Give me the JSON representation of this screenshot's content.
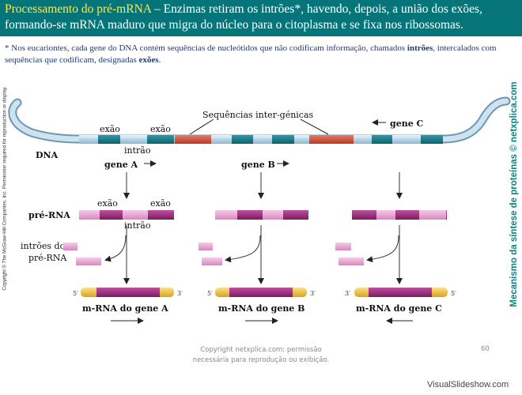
{
  "header": {
    "title_highlight": "Processamento do pré-mRNA",
    "title_rest": " – Enzimas retiram os intrões*, havendo, depois, a união dos exões, formando-se mRNA maduro que migra do núcleo para o citoplasma e se fixa nos ribossomas."
  },
  "note": {
    "part1": "* Nos eucariontes, cada gene do DNA contém sequências de nucleótidos que não codificam informação, chamados ",
    "intron_word": "intrões",
    "part2": ", intercalados com sequências que codificam, designadas ",
    "exon_word": "exões",
    "part3": "."
  },
  "side": {
    "copyright": "Copyright © The McGraw-Hill Companies, Inc. Permission required for reproduction or display.",
    "watermark": "Mecanismo da síntese de proteínas © netxplica.com"
  },
  "diagram": {
    "dna_label": "DNA",
    "intergenic_label": "Sequências inter-génicas",
    "exon_label": "exão",
    "intron_label": "intrão",
    "gene_a": "gene A",
    "gene_b": "gene B",
    "gene_c": "gene C",
    "pre_rna_label": "pré-RNA",
    "removed_introns_label_1": "intrões do",
    "removed_introns_label_2": "pré-RNA",
    "end5": "5′",
    "end3": "3′",
    "mrna_a": "m-RNA do gene A",
    "mrna_b": "m-RNA do gene B",
    "mrna_c": "m-RNA do gene C"
  },
  "colors": {
    "header_bg": "#06757a",
    "dna_backbone": "#c2dcea",
    "exon_dna": "#1b7f8c",
    "intergenic": "#d95a45",
    "pre_rna_exon": "#9b2c7c",
    "pre_rna_intron": "#e5a4d2",
    "mrna_body": "#962a7c",
    "mrna_cap": "#f0c238"
  },
  "footer": {
    "line1": "Copyright netxplica.com: permissão",
    "line2": "necessária para reprodução ou exibição.",
    "page": "60",
    "brand": "VisualSlideshow.com"
  }
}
